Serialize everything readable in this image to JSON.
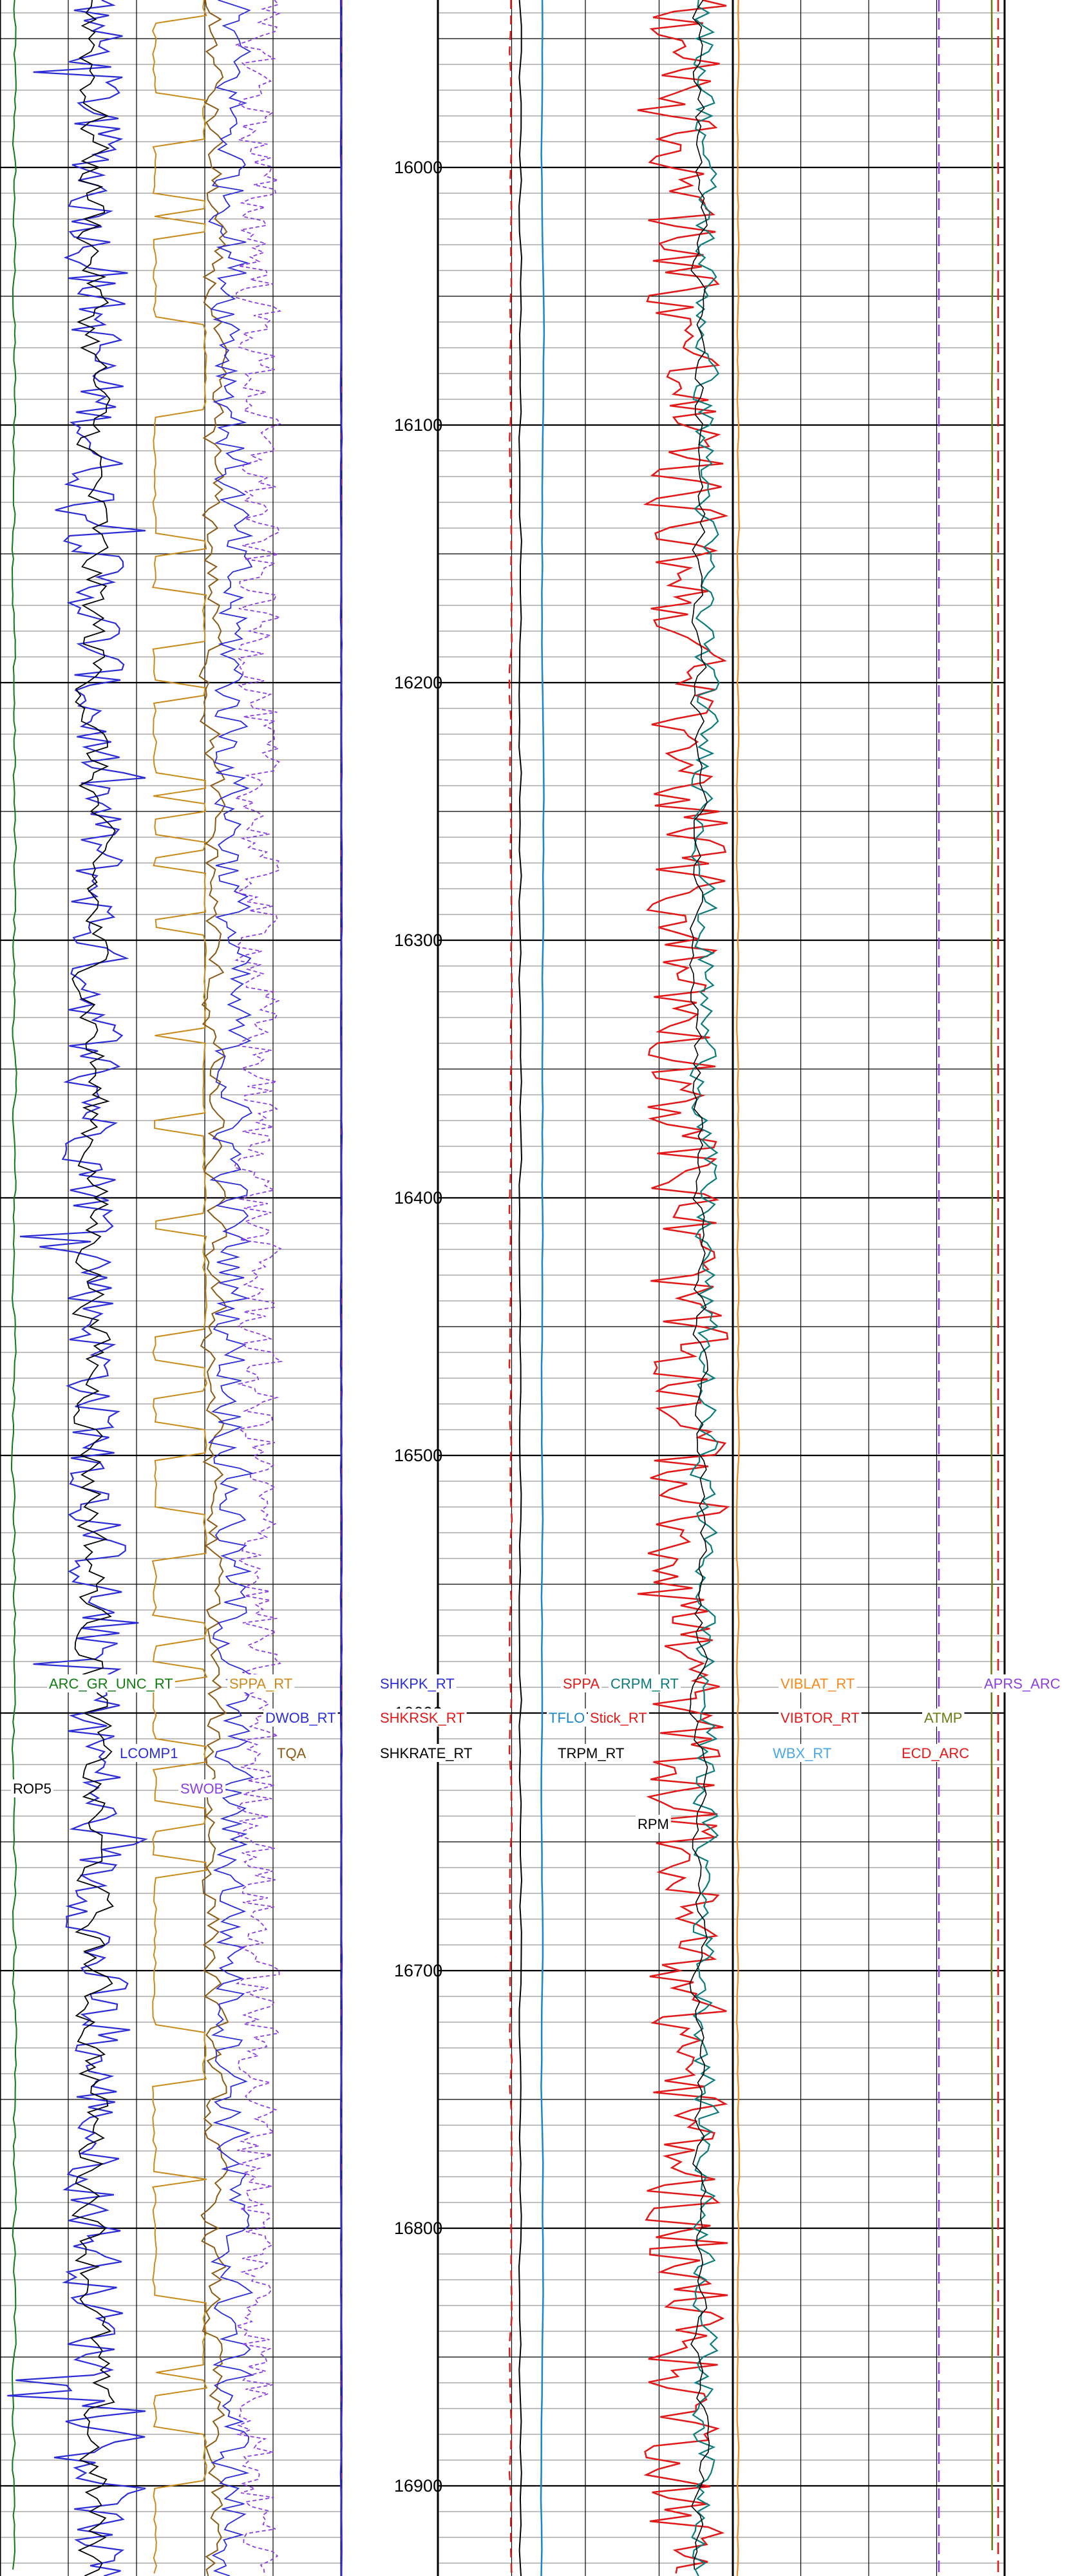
{
  "chart_data": {
    "type": "line",
    "title": "",
    "y_axis": {
      "label": "",
      "unit": "",
      "range": [
        15935,
        16935
      ],
      "ticks": [
        16000,
        16100,
        16200,
        16300,
        16400,
        16500,
        16600,
        16700,
        16800,
        16900
      ],
      "direction": "downward"
    },
    "grid": true,
    "tracks": [
      {
        "name": "track-1",
        "series": [
          {
            "name": "ARC_GR_UNC_RT",
            "color": "#117a11",
            "style": "solid"
          },
          {
            "name": "LCOMP1",
            "color": "#2c2cd4",
            "style": "solid"
          },
          {
            "name": "ROP5",
            "color": "#000000",
            "style": "solid"
          }
        ]
      },
      {
        "name": "track-2",
        "series": [
          {
            "name": "SPPA_RT",
            "color": "#c88a1a",
            "style": "solid"
          },
          {
            "name": "DWOB_RT",
            "color": "#2c2cd4",
            "style": "solid"
          },
          {
            "name": "SWOB",
            "color": "#8b3fe0",
            "style": "solid"
          },
          {
            "name": "TQA",
            "color": "#8b5a14",
            "style": "solid"
          }
        ]
      },
      {
        "name": "track-3",
        "series": [
          {
            "name": "SHKPK_RT",
            "color": "#2c2cd4",
            "style": "solid"
          },
          {
            "name": "SHKRSK_RT",
            "color": "#e01818",
            "style": "dashed"
          },
          {
            "name": "SHKRATE_RT",
            "color": "#000000",
            "style": "dashed"
          }
        ]
      },
      {
        "name": "track-4",
        "series": [
          {
            "name": "SPPA",
            "color": "#e01818",
            "style": "dashed"
          },
          {
            "name": "TFLO",
            "color": "#1a86c8",
            "style": "solid"
          },
          {
            "name": "TRPM_RT",
            "color": "#000000",
            "style": "solid"
          }
        ]
      },
      {
        "name": "track-5",
        "series": [
          {
            "name": "CRPM_RT",
            "color": "#0a7a7a",
            "style": "solid"
          },
          {
            "name": "Stick_RT",
            "color": "#e01818",
            "style": "solid"
          },
          {
            "name": "RPM",
            "color": "#000000",
            "style": "solid"
          }
        ]
      },
      {
        "name": "track-6",
        "series": [
          {
            "name": "VIBLAT_RT",
            "color": "#f08a1a",
            "style": "solid"
          },
          {
            "name": "VIBTOR_RT",
            "color": "#e01818",
            "style": "solid"
          },
          {
            "name": "WBX_RT",
            "color": "#4aa8e0",
            "style": "dashed"
          }
        ]
      },
      {
        "name": "track-7",
        "series": [
          {
            "name": "APRS_ARC",
            "color": "#8b3fe0",
            "style": "dashed"
          },
          {
            "name": "ATMP",
            "color": "#6b7a14",
            "style": "solid"
          },
          {
            "name": "ECD_ARC",
            "color": "#e01818",
            "style": "dashed"
          }
        ]
      }
    ],
    "curve_labels": [
      {
        "text": "ARC_GR_UNC_RT",
        "color": "#117a11"
      },
      {
        "text": "SPPA_RT",
        "color": "#c88a1a"
      },
      {
        "text": "SHKPK_RT",
        "color": "#2c2cd4"
      },
      {
        "text": "SPPA",
        "color": "#e01818"
      },
      {
        "text": "CRPM_RT",
        "color": "#0a7a7a"
      },
      {
        "text": "VIBLAT_RT",
        "color": "#f08a1a"
      },
      {
        "text": "APRS_ARC",
        "color": "#8b3fe0"
      },
      {
        "text": "DWOB_RT",
        "color": "#2c2cd4"
      },
      {
        "text": "SHKRSK_RT",
        "color": "#e01818"
      },
      {
        "text": "TFLO",
        "color": "#1a86c8"
      },
      {
        "text": "Stick_RT",
        "color": "#e01818"
      },
      {
        "text": "VIBTOR_RT",
        "color": "#e01818"
      },
      {
        "text": "ATMP",
        "color": "#6b7a14"
      },
      {
        "text": "LCOMP1",
        "color": "#2c2cd4"
      },
      {
        "text": "TQA",
        "color": "#8b5a14"
      },
      {
        "text": "SHKRATE_RT",
        "color": "#000000"
      },
      {
        "text": "TRPM_RT",
        "color": "#000000"
      },
      {
        "text": "WBX_RT",
        "color": "#4aa8e0"
      },
      {
        "text": "ECD_ARC",
        "color": "#e01818"
      },
      {
        "text": "ROP5",
        "color": "#000000"
      },
      {
        "text": "SWOB",
        "color": "#8b3fe0"
      },
      {
        "text": "RPM",
        "color": "#000000"
      }
    ]
  }
}
